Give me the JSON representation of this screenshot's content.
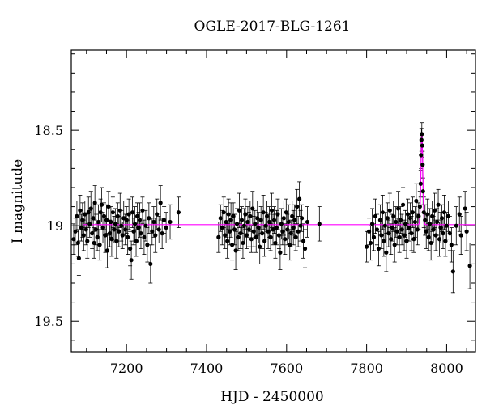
{
  "chart_data": {
    "type": "scatter",
    "title": "OGLE-2017-BLG-1261",
    "xlabel": "HJD - 2450000",
    "ylabel": "I magnitude",
    "xlim": [
      7062,
      8072
    ],
    "ylim": [
      19.66,
      18.08
    ],
    "y_inverted": true,
    "x_ticks": [
      7200,
      7400,
      7600,
      7800,
      8000
    ],
    "x_tick_labels": [
      "7200",
      "7400",
      "7600",
      "7800",
      "8000"
    ],
    "y_ticks": [
      18.5,
      19,
      19.5
    ],
    "y_tick_labels": [
      "18.5",
      "19",
      "19.5"
    ],
    "grid": false,
    "legend": "none",
    "colors": {
      "points": "#000000",
      "model": "#ff00ff"
    },
    "model": {
      "baseline": 18.994,
      "peak_x": 7938,
      "peak_mag": 18.52,
      "width": 3.3
    },
    "series": [
      {
        "type": "errorbar_points",
        "points": [
          [
            7068,
            19.07,
            0.08
          ],
          [
            7072,
            19.03,
            0.07
          ],
          [
            7076,
            18.95,
            0.08
          ],
          [
            7079,
            19.09,
            0.07
          ],
          [
            7081,
            19.17,
            0.09
          ],
          [
            7084,
            18.92,
            0.08
          ],
          [
            7087,
            19.01,
            0.07
          ],
          [
            7090,
            18.97,
            0.09
          ],
          [
            7093,
            19.05,
            0.08
          ],
          [
            7096,
            18.94,
            0.07
          ],
          [
            7099,
            19.02,
            0.08
          ],
          [
            7102,
            19.08,
            0.09
          ],
          [
            7105,
            18.93,
            0.08
          ],
          [
            7108,
            18.99,
            0.07
          ],
          [
            7111,
            18.91,
            0.09
          ],
          [
            7114,
            19.04,
            0.08
          ],
          [
            7117,
            18.96,
            0.07
          ],
          [
            7119,
            19.09,
            0.08
          ],
          [
            7121,
            18.88,
            0.09
          ],
          [
            7124,
            19.02,
            0.08
          ],
          [
            7127,
            19.06,
            0.07
          ],
          [
            7130,
            18.98,
            0.09
          ],
          [
            7133,
            19.1,
            0.08
          ],
          [
            7135,
            18.93,
            0.07
          ],
          [
            7138,
            18.89,
            0.09
          ],
          [
            7141,
            19.01,
            0.08
          ],
          [
            7144,
            18.95,
            0.07
          ],
          [
            7147,
            19.05,
            0.09
          ],
          [
            7150,
            18.97,
            0.08
          ],
          [
            7152,
            19.13,
            0.09
          ],
          [
            7155,
            18.9,
            0.08
          ],
          [
            7158,
            19.04,
            0.07
          ],
          [
            7161,
            18.98,
            0.08
          ],
          [
            7163,
            19.07,
            0.09
          ],
          [
            7166,
            18.93,
            0.08
          ],
          [
            7169,
            19.02,
            0.07
          ],
          [
            7172,
            18.99,
            0.08
          ],
          [
            7175,
            19.08,
            0.09
          ],
          [
            7178,
            18.95,
            0.07
          ],
          [
            7181,
            19.03,
            0.08
          ],
          [
            7184,
            18.92,
            0.09
          ],
          [
            7187,
            19.0,
            0.08
          ],
          [
            7190,
            19.05,
            0.07
          ],
          [
            7193,
            18.96,
            0.09
          ],
          [
            7197,
            19.02,
            0.08
          ],
          [
            7200,
            18.97,
            0.07
          ],
          [
            7203,
            19.06,
            0.09
          ],
          [
            7206,
            18.94,
            0.08
          ],
          [
            7209,
            19.12,
            0.09
          ],
          [
            7212,
            19.18,
            0.1
          ],
          [
            7215,
            18.93,
            0.08
          ],
          [
            7218,
            19.03,
            0.07
          ],
          [
            7221,
            18.99,
            0.09
          ],
          [
            7224,
            19.08,
            0.08
          ],
          [
            7227,
            18.95,
            0.07
          ],
          [
            7230,
            19.01,
            0.08
          ],
          [
            7233,
            18.97,
            0.09
          ],
          [
            7236,
            19.04,
            0.08
          ],
          [
            7240,
            18.92,
            0.07
          ],
          [
            7244,
            19.06,
            0.09
          ],
          [
            7248,
            19.0,
            0.08
          ],
          [
            7252,
            19.1,
            0.09
          ],
          [
            7256,
            18.96,
            0.08
          ],
          [
            7260,
            19.2,
            0.1
          ],
          [
            7264,
            19.03,
            0.07
          ],
          [
            7268,
            18.98,
            0.08
          ],
          [
            7272,
            19.05,
            0.09
          ],
          [
            7276,
            18.94,
            0.08
          ],
          [
            7281,
            19.02,
            0.07
          ],
          [
            7285,
            18.88,
            0.09
          ],
          [
            7289,
            19.04,
            0.08
          ],
          [
            7294,
            18.97,
            0.07
          ],
          [
            7299,
            19.01,
            0.08
          ],
          [
            7309,
            18.98,
            0.09
          ],
          [
            7330,
            18.93,
            0.08
          ],
          [
            7430,
            19.06,
            0.08
          ],
          [
            7435,
            18.96,
            0.07
          ],
          [
            7439,
            19.01,
            0.09
          ],
          [
            7443,
            18.93,
            0.08
          ],
          [
            7446,
            19.05,
            0.07
          ],
          [
            7449,
            18.98,
            0.08
          ],
          [
            7452,
            19.08,
            0.09
          ],
          [
            7455,
            18.94,
            0.08
          ],
          [
            7458,
            19.03,
            0.07
          ],
          [
            7461,
            18.97,
            0.09
          ],
          [
            7464,
            19.1,
            0.08
          ],
          [
            7467,
            18.95,
            0.07
          ],
          [
            7470,
            19.02,
            0.08
          ],
          [
            7473,
            19.13,
            0.1
          ],
          [
            7476,
            18.99,
            0.08
          ],
          [
            7479,
            19.06,
            0.07
          ],
          [
            7482,
            18.92,
            0.09
          ],
          [
            7485,
            19.04,
            0.08
          ],
          [
            7488,
            18.97,
            0.07
          ],
          [
            7491,
            19.09,
            0.08
          ],
          [
            7494,
            19.0,
            0.09
          ],
          [
            7497,
            18.94,
            0.08
          ],
          [
            7500,
            19.05,
            0.07
          ],
          [
            7503,
            18.98,
            0.08
          ],
          [
            7506,
            19.02,
            0.09
          ],
          [
            7509,
            18.95,
            0.08
          ],
          [
            7512,
            19.07,
            0.07
          ],
          [
            7515,
            18.91,
            0.09
          ],
          [
            7518,
            19.03,
            0.08
          ],
          [
            7521,
            18.99,
            0.07
          ],
          [
            7524,
            19.06,
            0.08
          ],
          [
            7527,
            18.96,
            0.09
          ],
          [
            7530,
            19.01,
            0.08
          ],
          [
            7533,
            19.11,
            0.09
          ],
          [
            7536,
            18.97,
            0.07
          ],
          [
            7539,
            19.04,
            0.08
          ],
          [
            7542,
            18.93,
            0.09
          ],
          [
            7545,
            19.08,
            0.08
          ],
          [
            7548,
            19.0,
            0.07
          ],
          [
            7551,
            18.95,
            0.08
          ],
          [
            7554,
            19.03,
            0.09
          ],
          [
            7557,
            18.98,
            0.08
          ],
          [
            7560,
            19.06,
            0.07
          ],
          [
            7563,
            18.92,
            0.09
          ],
          [
            7566,
            19.02,
            0.08
          ],
          [
            7569,
            18.97,
            0.07
          ],
          [
            7572,
            19.09,
            0.08
          ],
          [
            7575,
            19.01,
            0.09
          ],
          [
            7578,
            18.94,
            0.08
          ],
          [
            7581,
            19.05,
            0.07
          ],
          [
            7584,
            19.14,
            0.09
          ],
          [
            7587,
            18.99,
            0.08
          ],
          [
            7590,
            19.03,
            0.07
          ],
          [
            7593,
            18.96,
            0.09
          ],
          [
            7596,
            19.07,
            0.08
          ],
          [
            7599,
            18.93,
            0.07
          ],
          [
            7602,
            19.02,
            0.08
          ],
          [
            7605,
            18.98,
            0.09
          ],
          [
            7608,
            19.1,
            0.08
          ],
          [
            7611,
            19.04,
            0.07
          ],
          [
            7614,
            18.95,
            0.08
          ],
          [
            7617,
            19.01,
            0.09
          ],
          [
            7620,
            18.97,
            0.08
          ],
          [
            7623,
            19.06,
            0.07
          ],
          [
            7626,
            18.9,
            0.09
          ],
          [
            7629,
            19.03,
            0.08
          ],
          [
            7632,
            18.86,
            0.09
          ],
          [
            7635,
            19.0,
            0.08
          ],
          [
            7638,
            18.96,
            0.07
          ],
          [
            7642,
            19.08,
            0.09
          ],
          [
            7646,
            19.12,
            0.1
          ],
          [
            7652,
            18.98,
            0.08
          ],
          [
            7682,
            18.99,
            0.09
          ],
          [
            7800,
            19.11,
            0.08
          ],
          [
            7806,
            19.03,
            0.07
          ],
          [
            7810,
            19.09,
            0.09
          ],
          [
            7814,
            18.99,
            0.08
          ],
          [
            7818,
            19.06,
            0.07
          ],
          [
            7822,
            18.95,
            0.09
          ],
          [
            7826,
            19.02,
            0.08
          ],
          [
            7830,
            19.12,
            0.09
          ],
          [
            7834,
            18.97,
            0.08
          ],
          [
            7837,
            19.05,
            0.07
          ],
          [
            7840,
            18.93,
            0.09
          ],
          [
            7843,
            19.08,
            0.08
          ],
          [
            7846,
            19.0,
            0.07
          ],
          [
            7849,
            19.14,
            0.1
          ],
          [
            7852,
            18.96,
            0.08
          ],
          [
            7855,
            19.04,
            0.07
          ],
          [
            7858,
            18.92,
            0.09
          ],
          [
            7861,
            19.07,
            0.08
          ],
          [
            7864,
            19.01,
            0.07
          ],
          [
            7867,
            18.95,
            0.08
          ],
          [
            7870,
            19.1,
            0.09
          ],
          [
            7873,
            18.98,
            0.08
          ],
          [
            7876,
            19.03,
            0.07
          ],
          [
            7879,
            18.91,
            0.09
          ],
          [
            7882,
            19.06,
            0.08
          ],
          [
            7885,
            18.97,
            0.07
          ],
          [
            7888,
            19.02,
            0.08
          ],
          [
            7891,
            18.89,
            0.09
          ],
          [
            7894,
            19.05,
            0.08
          ],
          [
            7897,
            18.99,
            0.07
          ],
          [
            7900,
            19.08,
            0.09
          ],
          [
            7903,
            18.94,
            0.08
          ],
          [
            7906,
            19.01,
            0.07
          ],
          [
            7909,
            18.96,
            0.08
          ],
          [
            7912,
            19.04,
            0.09
          ],
          [
            7915,
            18.93,
            0.08
          ],
          [
            7918,
            19.07,
            0.07
          ],
          [
            7921,
            18.98,
            0.08
          ],
          [
            7924,
            18.87,
            0.09
          ],
          [
            7927,
            19.02,
            0.08
          ],
          [
            7930,
            18.95,
            0.07
          ],
          [
            7933,
            18.9,
            0.08
          ],
          [
            7935,
            18.78,
            0.07
          ],
          [
            7936,
            18.63,
            0.07
          ],
          [
            7937,
            18.55,
            0.06
          ],
          [
            7938,
            18.52,
            0.06
          ],
          [
            7939,
            18.58,
            0.06
          ],
          [
            7940,
            18.68,
            0.07
          ],
          [
            7941,
            18.82,
            0.07
          ],
          [
            7943,
            18.93,
            0.08
          ],
          [
            7946,
            18.97,
            0.08
          ],
          [
            7949,
            19.03,
            0.09
          ],
          [
            7952,
            18.94,
            0.08
          ],
          [
            7955,
            19.06,
            0.07
          ],
          [
            7958,
            18.99,
            0.08
          ],
          [
            7961,
            19.09,
            0.09
          ],
          [
            7964,
            18.95,
            0.08
          ],
          [
            7967,
            19.02,
            0.07
          ],
          [
            7970,
            18.92,
            0.09
          ],
          [
            7973,
            19.05,
            0.08
          ],
          [
            7976,
            18.98,
            0.07
          ],
          [
            7979,
            18.89,
            0.08
          ],
          [
            7982,
            19.07,
            0.09
          ],
          [
            7985,
            19.01,
            0.08
          ],
          [
            7988,
            18.96,
            0.07
          ],
          [
            7991,
            19.04,
            0.08
          ],
          [
            7994,
            18.93,
            0.09
          ],
          [
            7997,
            19.08,
            0.08
          ],
          [
            8000,
            19.0,
            0.07
          ],
          [
            8004,
            18.95,
            0.08
          ],
          [
            8008,
            19.04,
            0.09
          ],
          [
            8012,
            19.1,
            0.09
          ],
          [
            8016,
            19.24,
            0.11
          ],
          [
            8024,
            19.0,
            0.1
          ],
          [
            8032,
            18.94,
            0.09
          ],
          [
            8036,
            19.05,
            0.1
          ],
          [
            8046,
            18.91,
            0.09
          ],
          [
            8050,
            19.03,
            0.1
          ],
          [
            8058,
            19.21,
            0.12
          ]
        ]
      }
    ]
  }
}
